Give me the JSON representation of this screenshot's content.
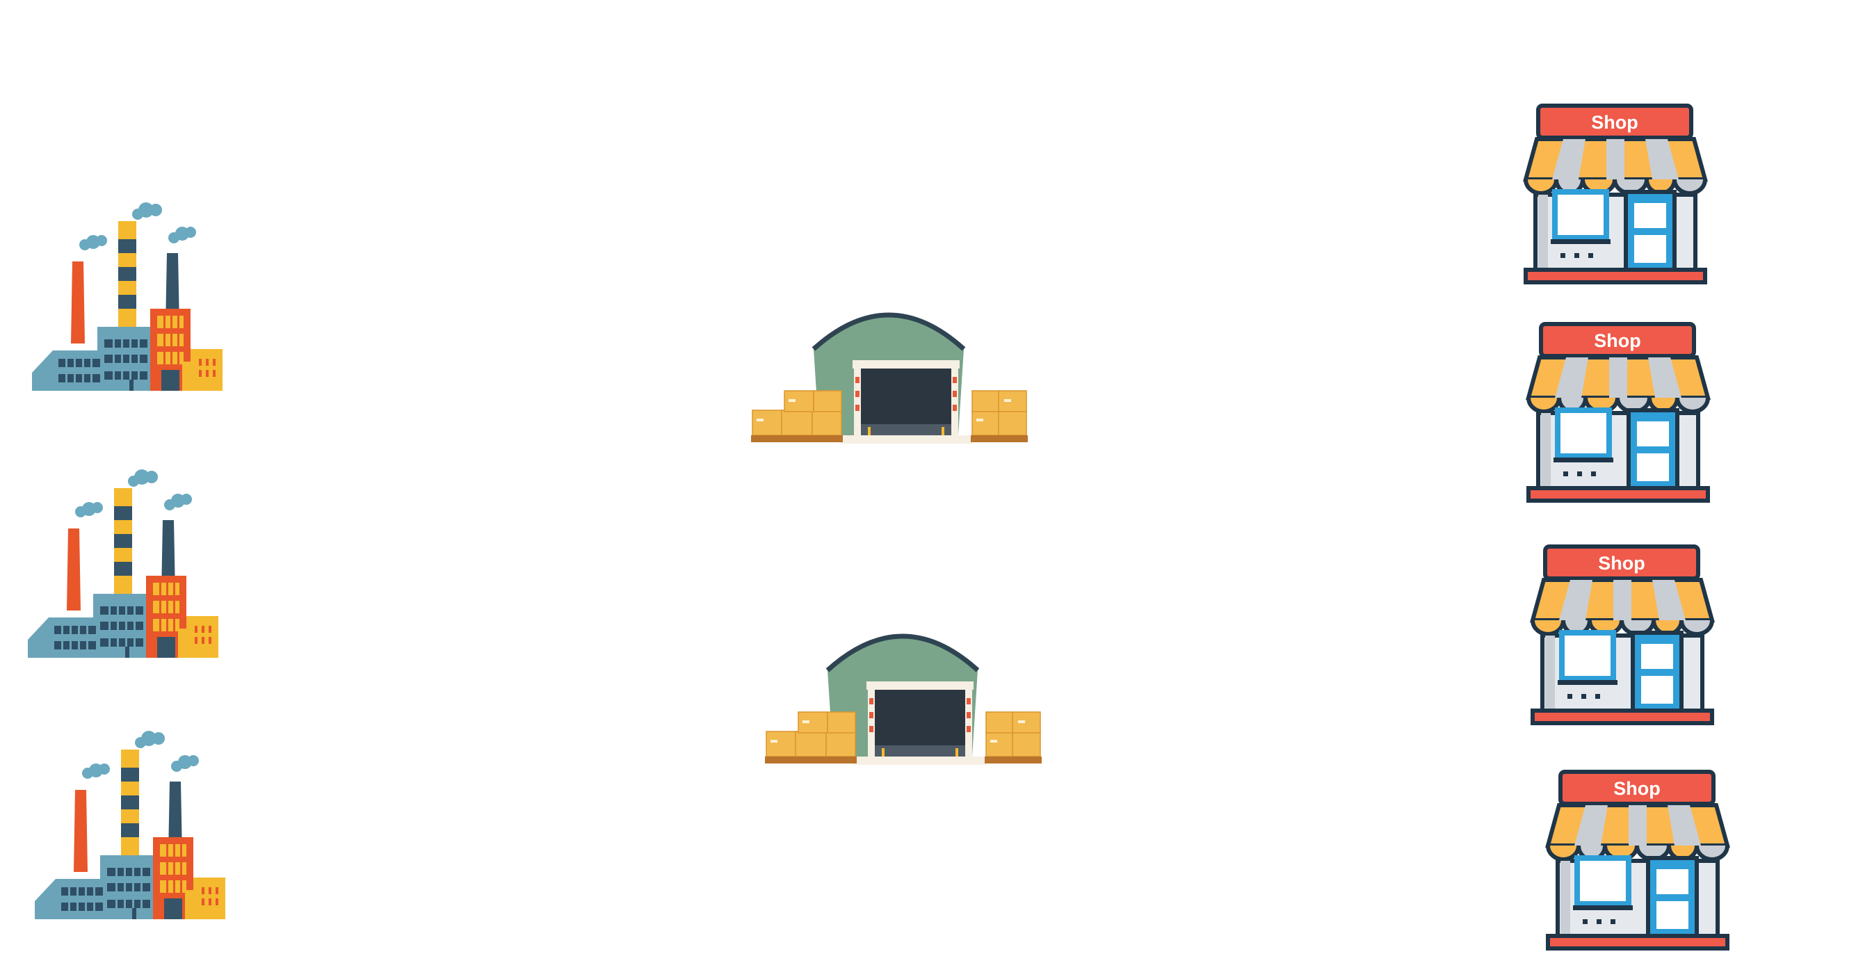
{
  "diagram": {
    "factories": [
      {
        "icon": "factory-icon"
      },
      {
        "icon": "factory-icon"
      },
      {
        "icon": "factory-icon"
      }
    ],
    "warehouses": [
      {
        "icon": "warehouse-icon"
      },
      {
        "icon": "warehouse-icon"
      }
    ],
    "shops": [
      {
        "icon": "shop-icon",
        "label": "Shop"
      },
      {
        "icon": "shop-icon",
        "label": "Shop"
      },
      {
        "icon": "shop-icon",
        "label": "Shop"
      },
      {
        "icon": "shop-icon",
        "label": "Shop"
      }
    ]
  },
  "colors": {
    "factory_body": "#6ba4b8",
    "factory_windows": "#2f4f67",
    "chimney_orange": "#e8562a",
    "chimney_yellow": "#f4b92e",
    "chimney_dark": "#355468",
    "smoke": "#6aa9bf",
    "warehouse_roof": "#7aa58a",
    "warehouse_door": "#2b3640",
    "boxes": "#f2b94f",
    "shop_sign": "#ef5a4a",
    "shop_awning_yellow": "#fbb84e",
    "shop_awning_grey": "#c9ced4",
    "shop_outline": "#1f3548",
    "shop_window": "#2e9fd8"
  }
}
